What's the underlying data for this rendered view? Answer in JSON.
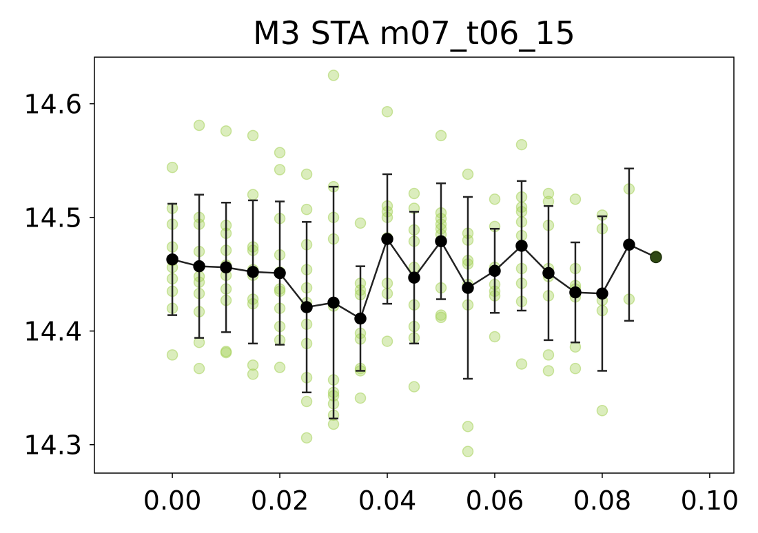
{
  "chart_data": {
    "type": "scatter",
    "title": "M3 STA m07_t06_15",
    "xlabel": "",
    "ylabel": "",
    "xlim": [
      -0.0145,
      0.1045
    ],
    "ylim": [
      14.275,
      14.641
    ],
    "x_ticks": [
      0.0,
      0.02,
      0.04,
      0.06,
      0.08,
      0.1
    ],
    "x_tick_labels": [
      "0.00",
      "0.02",
      "0.04",
      "0.06",
      "0.08",
      "0.10"
    ],
    "y_ticks": [
      14.3,
      14.4,
      14.5,
      14.6
    ],
    "y_tick_labels": [
      "14.3",
      "14.4",
      "14.5",
      "14.6"
    ],
    "grid": false,
    "legend": "none",
    "colors": {
      "points": "#a6d15a",
      "mean": "#000000",
      "line": "#222222",
      "last_point": "#2f4a12"
    },
    "series": [
      {
        "kind": "raw",
        "x": [
          0,
          0,
          0,
          0,
          0,
          0,
          0,
          0,
          0,
          0,
          0.005,
          0.005,
          0.005,
          0.005,
          0.005,
          0.005,
          0.005,
          0.005,
          0.005,
          0.005,
          0.01,
          0.01,
          0.01,
          0.01,
          0.01,
          0.01,
          0.01,
          0.01,
          0.01,
          0.01,
          0.015,
          0.015,
          0.015,
          0.015,
          0.015,
          0.015,
          0.015,
          0.015,
          0.015,
          0.015,
          0.02,
          0.02,
          0.02,
          0.02,
          0.02,
          0.02,
          0.02,
          0.02,
          0.02,
          0.02,
          0.02,
          0.025,
          0.025,
          0.025,
          0.025,
          0.025,
          0.025,
          0.025,
          0.025,
          0.025,
          0.025,
          0.025,
          0.03,
          0.03,
          0.03,
          0.03,
          0.03,
          0.03,
          0.03,
          0.03,
          0.03,
          0.03,
          0.03,
          0.035,
          0.035,
          0.035,
          0.035,
          0.035,
          0.035,
          0.035,
          0.035,
          0.035,
          0.04,
          0.04,
          0.04,
          0.04,
          0.04,
          0.04,
          0.04,
          0.04,
          0.045,
          0.045,
          0.045,
          0.045,
          0.045,
          0.045,
          0.045,
          0.045,
          0.045,
          0.05,
          0.05,
          0.05,
          0.05,
          0.05,
          0.05,
          0.05,
          0.05,
          0.05,
          0.055,
          0.055,
          0.055,
          0.055,
          0.055,
          0.055,
          0.055,
          0.055,
          0.055,
          0.06,
          0.06,
          0.06,
          0.06,
          0.06,
          0.06,
          0.06,
          0.06,
          0.065,
          0.065,
          0.065,
          0.065,
          0.065,
          0.065,
          0.065,
          0.065,
          0.065,
          0.065,
          0.07,
          0.07,
          0.07,
          0.07,
          0.07,
          0.07,
          0.07,
          0.07,
          0.07,
          0.075,
          0.075,
          0.075,
          0.075,
          0.075,
          0.075,
          0.075,
          0.075,
          0.08,
          0.08,
          0.08,
          0.08,
          0.08,
          0.085,
          0.085,
          0.09
        ],
        "y": [
          14.544,
          14.508,
          14.494,
          14.474,
          14.462,
          14.456,
          14.446,
          14.435,
          14.42,
          14.379,
          14.581,
          14.5,
          14.494,
          14.47,
          14.448,
          14.443,
          14.433,
          14.417,
          14.39,
          14.367,
          14.576,
          14.493,
          14.486,
          14.471,
          14.458,
          14.449,
          14.437,
          14.427,
          14.382,
          14.381,
          14.572,
          14.52,
          14.474,
          14.471,
          14.454,
          14.449,
          14.428,
          14.424,
          14.37,
          14.362,
          14.557,
          14.542,
          14.499,
          14.467,
          14.452,
          14.437,
          14.435,
          14.42,
          14.404,
          14.392,
          14.368,
          14.538,
          14.507,
          14.476,
          14.454,
          14.438,
          14.425,
          14.406,
          14.389,
          14.359,
          14.338,
          14.306,
          14.625,
          14.527,
          14.5,
          14.481,
          14.422,
          14.357,
          14.346,
          14.343,
          14.336,
          14.326,
          14.318,
          14.495,
          14.442,
          14.436,
          14.432,
          14.398,
          14.393,
          14.367,
          14.365,
          14.341,
          14.593,
          14.51,
          14.505,
          14.5,
          14.482,
          14.442,
          14.433,
          14.391,
          14.521,
          14.508,
          14.489,
          14.479,
          14.456,
          14.423,
          14.404,
          14.394,
          14.351,
          14.572,
          14.504,
          14.499,
          14.494,
          14.49,
          14.485,
          14.438,
          14.414,
          14.412,
          14.538,
          14.486,
          14.48,
          14.462,
          14.459,
          14.441,
          14.423,
          14.316,
          14.294,
          14.516,
          14.492,
          14.456,
          14.453,
          14.441,
          14.435,
          14.431,
          14.395,
          14.564,
          14.518,
          14.509,
          14.505,
          14.496,
          14.484,
          14.455,
          14.442,
          14.426,
          14.371,
          14.521,
          14.514,
          14.493,
          14.455,
          14.451,
          14.448,
          14.431,
          14.379,
          14.365,
          14.516,
          14.455,
          14.44,
          14.437,
          14.434,
          14.43,
          14.386,
          14.367,
          14.502,
          14.49,
          14.427,
          14.418,
          14.33,
          14.525,
          14.428,
          14.466
        ]
      },
      {
        "kind": "binned_mean",
        "x": [
          0,
          0.005,
          0.01,
          0.015,
          0.02,
          0.025,
          0.03,
          0.035,
          0.04,
          0.045,
          0.05,
          0.055,
          0.06,
          0.065,
          0.07,
          0.075,
          0.08,
          0.085,
          0.09
        ],
        "y": [
          14.463,
          14.457,
          14.456,
          14.452,
          14.451,
          14.421,
          14.425,
          14.411,
          14.481,
          14.447,
          14.479,
          14.438,
          14.453,
          14.475,
          14.451,
          14.434,
          14.433,
          14.476,
          14.465
        ],
        "yerr": [
          0.049,
          0.063,
          0.057,
          0.063,
          0.063,
          0.075,
          0.102,
          0.046,
          0.057,
          0.058,
          0.051,
          0.08,
          0.037,
          0.057,
          0.059,
          0.044,
          0.068,
          0.067,
          0
        ]
      }
    ]
  }
}
